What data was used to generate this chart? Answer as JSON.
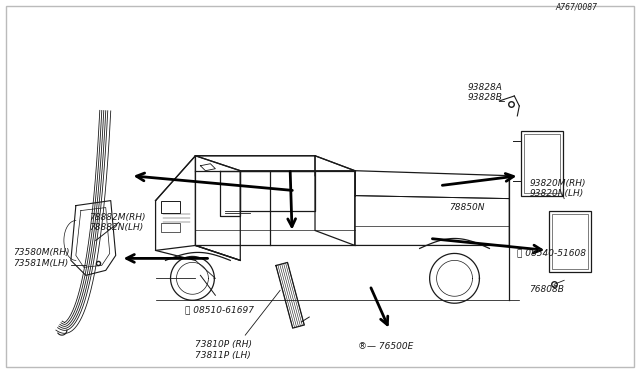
{
  "background_color": "#ffffff",
  "fig_number": "A767/0087",
  "line_color": "#1a1a1a",
  "text_color": "#1a1a1a",
  "arrow_color": "#000000",
  "labels": {
    "weatherstrip": "73580M(RH)\n73581M(LH)",
    "vent_strip": "73810P (RH)\n73811P (LH)",
    "bracket_a": "93828A\n93828B",
    "bracket_b": "93820M(RH)\n93820N(LH)",
    "part_78850": "78850N",
    "mud_guard": "78882M(RH)\n78882N(LH)",
    "bolt1": "08510-61697",
    "bolt2": "76500E",
    "part_76808": "76808B",
    "bolt3": "08540-51608"
  }
}
